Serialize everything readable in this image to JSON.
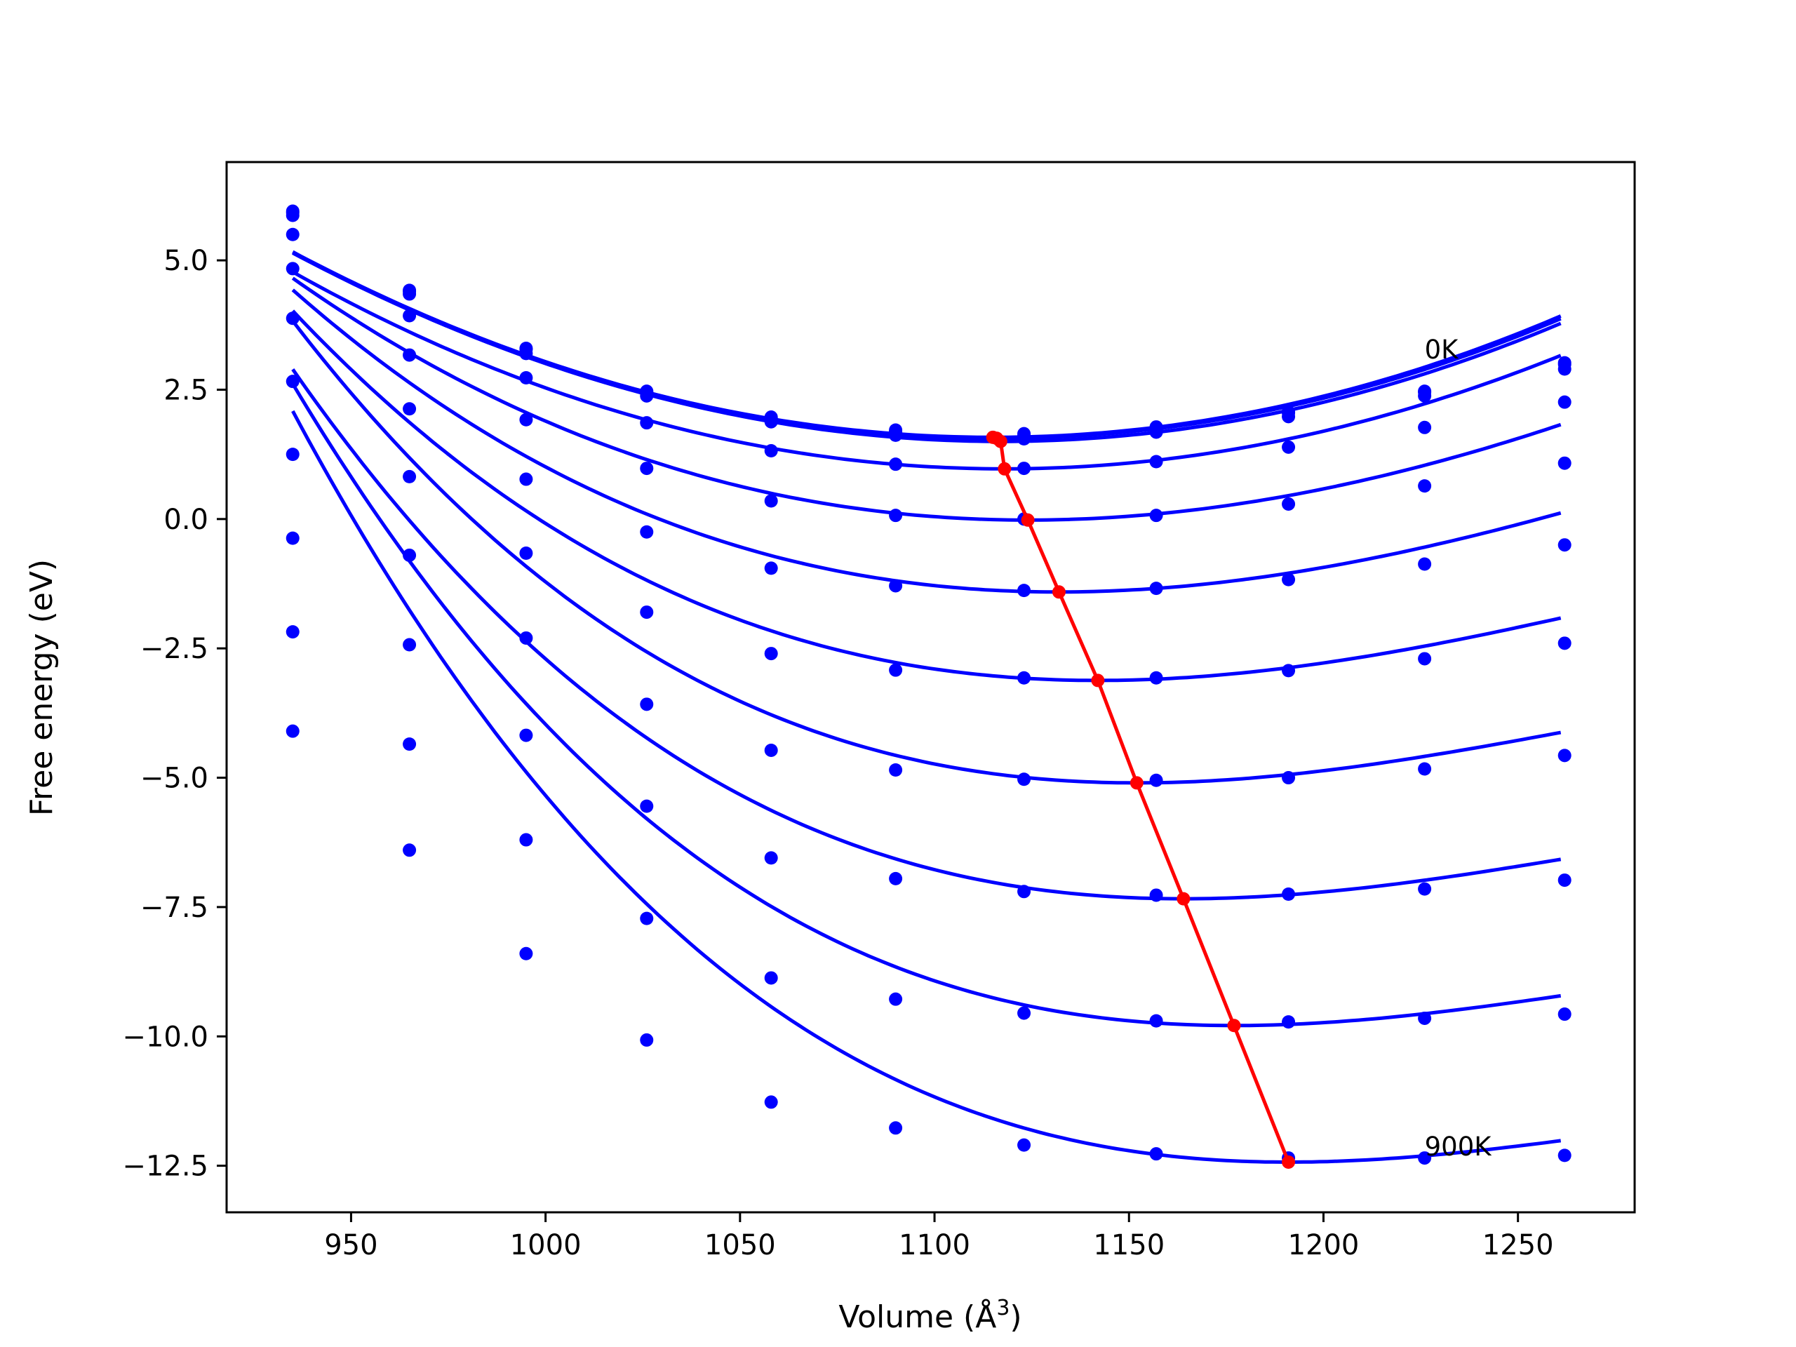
{
  "chart_data": {
    "type": "line",
    "title": "",
    "xlabel": "Volume (Å",
    "xlabel_superscript": "3",
    "xlabel_suffix": ")",
    "ylabel": "Free energy (eV)",
    "xlim": [
      918,
      1280
    ],
    "ylim": [
      -13.4,
      6.9
    ],
    "x_ticks": [
      950,
      1000,
      1050,
      1100,
      1150,
      1200,
      1250
    ],
    "x_tick_labels": [
      "950",
      "1000",
      "1050",
      "1100",
      "1150",
      "1200",
      "1250"
    ],
    "y_ticks": [
      5.0,
      2.5,
      0.0,
      -2.5,
      -5.0,
      -7.5,
      -10.0,
      -12.5
    ],
    "y_tick_labels": [
      "5.0",
      "2.5",
      "0.0",
      "−2.5",
      "−5.0",
      "−7.5",
      "−10.0",
      "−12.5"
    ],
    "grid": false,
    "legend": "none",
    "colors": {
      "series": "#0000ff",
      "minima": "#ff0000",
      "frame": "#000000"
    },
    "annotations": [
      {
        "text": "0K",
        "x": 1226,
        "y": 3.1
      },
      {
        "text": "900K",
        "x": 1226,
        "y": -12.3
      }
    ],
    "x": [
      935,
      965,
      995,
      1026,
      1058,
      1090,
      1123,
      1157,
      1191,
      1226,
      1262
    ],
    "series": [
      {
        "values": [
          5.95,
          4.42,
          3.3,
          2.47,
          1.97,
          1.72,
          1.65,
          1.78,
          2.07,
          2.47,
          3.02
        ]
      },
      {
        "values": [
          5.92,
          4.4,
          3.28,
          2.45,
          1.95,
          1.69,
          1.62,
          1.75,
          2.05,
          2.45,
          2.99
        ]
      },
      {
        "values": [
          5.87,
          4.35,
          3.2,
          2.38,
          1.88,
          1.62,
          1.55,
          1.68,
          1.98,
          2.38,
          2.9
        ]
      },
      {
        "values": [
          5.5,
          3.93,
          2.73,
          1.86,
          1.32,
          1.06,
          0.98,
          1.11,
          1.39,
          1.77,
          2.26
        ]
      },
      {
        "values": [
          4.84,
          3.17,
          1.92,
          0.98,
          0.35,
          0.07,
          0.0,
          0.07,
          0.29,
          0.64,
          1.08
        ]
      },
      {
        "values": [
          3.88,
          2.13,
          0.77,
          -0.25,
          -0.95,
          -1.29,
          -1.38,
          -1.34,
          -1.17,
          -0.87,
          -0.5
        ]
      },
      {
        "values": [
          2.66,
          0.82,
          -0.66,
          -1.8,
          -2.6,
          -2.92,
          -3.07,
          -3.07,
          -2.93,
          -2.7,
          -2.4
        ]
      },
      {
        "values": [
          1.25,
          -0.7,
          -2.3,
          -3.58,
          -4.47,
          -4.85,
          -5.03,
          -5.05,
          -5.0,
          -4.83,
          -4.57
        ]
      },
      {
        "values": [
          -0.37,
          -2.43,
          -4.18,
          -5.55,
          -6.55,
          -6.95,
          -7.2,
          -7.27,
          -7.25,
          -7.15,
          -6.98
        ]
      },
      {
        "values": [
          -2.18,
          -4.35,
          -6.2,
          -7.72,
          -8.87,
          -9.28,
          -9.55,
          -9.7,
          -9.72,
          -9.65,
          -9.57
        ]
      },
      {
        "values": [
          -4.1,
          -6.4,
          -8.4,
          -10.07,
          -11.27,
          -11.77,
          -12.1,
          -12.27,
          -12.35,
          -12.35,
          -12.3
        ]
      }
    ],
    "fits": [
      {
        "c": [
          1115,
          1.58
        ],
        "k": [
          0.00011,
          0.0
        ]
      },
      {
        "c": [
          1116,
          1.56
        ],
        "k": [
          0.00011,
          0.0
        ]
      },
      {
        "c": [
          1117,
          1.5
        ],
        "k": [
          0.00011,
          0.0
        ]
      },
      {
        "c": [
          1118,
          0.97
        ],
        "k": [
          0.00011,
          -2e-08
        ]
      },
      {
        "c": [
          1124,
          -0.02
        ],
        "k": [
          0.000112,
          -1e-07
        ]
      },
      {
        "c": [
          1132,
          -1.41
        ],
        "k": [
          0.000115,
          -1.8e-07
        ]
      },
      {
        "c": [
          1142,
          -3.12
        ],
        "k": [
          0.000115,
          -2.5e-07
        ]
      },
      {
        "c": [
          1152,
          -5.1
        ],
        "k": [
          0.000118,
          -3.3e-07
        ]
      },
      {
        "c": [
          1164,
          -7.34
        ],
        "k": [
          0.000115,
          -3.5e-07
        ]
      },
      {
        "c": [
          1177,
          -9.79
        ],
        "k": [
          0.000115,
          -4e-07
        ]
      },
      {
        "c": [
          1191,
          -12.43
        ],
        "k": [
          0.000114,
          -4.2e-07
        ]
      }
    ],
    "minima": {
      "x": [
        1115,
        1116,
        1117,
        1118,
        1124,
        1132,
        1142,
        1152,
        1164,
        1177,
        1191
      ],
      "y": [
        1.58,
        1.56,
        1.5,
        0.97,
        -0.02,
        -1.41,
        -3.12,
        -5.1,
        -7.34,
        -9.79,
        -12.43
      ]
    }
  }
}
